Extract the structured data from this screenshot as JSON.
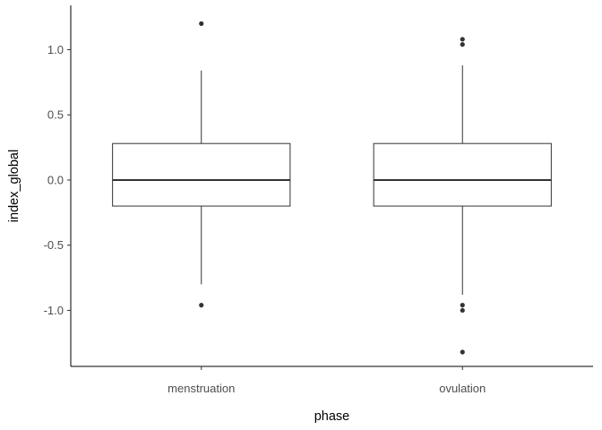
{
  "chart_data": {
    "type": "boxplot",
    "xlabel": "phase",
    "ylabel": "index_global",
    "categories": [
      "menstruation",
      "ovulation"
    ],
    "yticks": [
      -1.0,
      -0.5,
      0.0,
      0.5,
      1.0
    ],
    "ytick_labels": [
      "-1.0",
      "-0.5",
      "0.0",
      "0.5",
      "1.0"
    ],
    "ylim": [
      -1.43,
      1.34
    ],
    "grid": false,
    "legend": "none",
    "boxes": [
      {
        "category": "menstruation",
        "whisker_low": -0.8,
        "q1": -0.2,
        "median": 0.0,
        "q3": 0.28,
        "whisker_high": 0.84,
        "outliers": [
          1.2,
          -0.96
        ]
      },
      {
        "category": "ovulation",
        "whisker_low": -0.88,
        "q1": -0.2,
        "median": 0.0,
        "q3": 0.28,
        "whisker_high": 0.88,
        "outliers": [
          1.08,
          1.04,
          -0.96,
          -1.0,
          -1.32
        ]
      }
    ]
  }
}
